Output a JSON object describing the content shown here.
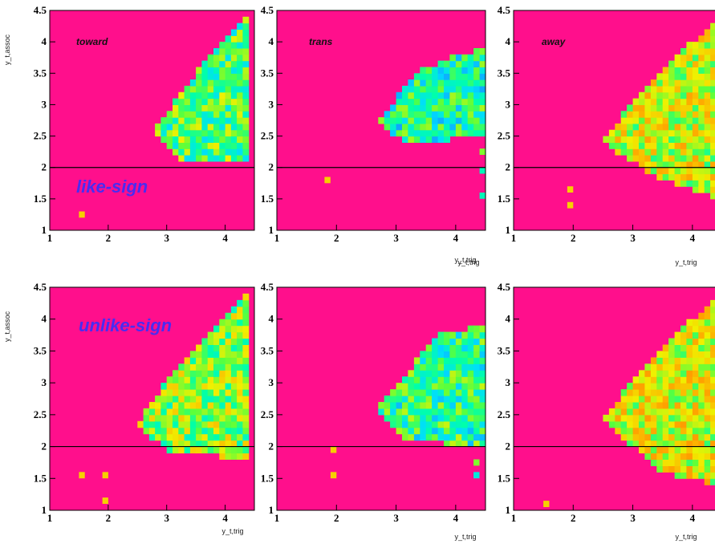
{
  "chart_data": [
    {
      "type": "heatmap",
      "panel_label": "toward",
      "sign_label": "like-sign",
      "xlabel": "y_t,trig",
      "ylabel": "y_t,assoc",
      "xlim": [
        1,
        4.5
      ],
      "ylim": [
        1,
        4.5
      ],
      "xticks": [
        "1",
        "2",
        "3",
        "4"
      ],
      "yticks": [
        "1",
        "1.5",
        "2",
        "2.5",
        "3",
        "3.5",
        "4",
        "4.5"
      ],
      "reference_line_y": 2,
      "background_color": "#ff0f8c",
      "cells": [
        [
          1.5,
          1.2,
          0.7
        ]
      ],
      "regions": [
        {
          "pts": [
            [
              2.8,
              2.6
            ],
            [
              3.5,
              3.5
            ],
            [
              4.0,
              4.1
            ],
            [
              4.4,
              4.4
            ],
            [
              4.4,
              2.1
            ],
            [
              3.2,
              2.1
            ]
          ],
          "level": 0.48
        }
      ]
    },
    {
      "type": "heatmap",
      "panel_label": "trans",
      "sign_label": "",
      "xlabel": "y_t,trig",
      "ylabel": "",
      "xlim": [
        1,
        4.5
      ],
      "ylim": [
        1,
        4.5
      ],
      "xticks": [
        "1",
        "2",
        "3",
        "4"
      ],
      "yticks": [
        "1",
        "1.5",
        "2",
        "2.5",
        "3",
        "3.5",
        "4",
        "4.5"
      ],
      "reference_line_y": 2,
      "background_color": "#ff0f8c",
      "cells": [
        [
          1.8,
          1.75,
          0.7
        ],
        [
          4.4,
          2.2,
          0.55
        ],
        [
          4.4,
          1.9,
          0.4
        ],
        [
          4.4,
          1.5,
          0.4
        ]
      ],
      "regions": [
        {
          "pts": [
            [
              2.7,
              2.7
            ],
            [
              3.3,
              3.5
            ],
            [
              4.0,
              3.8
            ],
            [
              4.5,
              3.9
            ],
            [
              4.5,
              2.5
            ],
            [
              3.2,
              2.4
            ]
          ],
          "level": 0.42
        }
      ]
    },
    {
      "type": "heatmap",
      "panel_label": "away",
      "sign_label": "",
      "xlabel": "y_t,trig",
      "ylabel": "",
      "xlim": [
        1,
        4.5
      ],
      "ylim": [
        1,
        4.5
      ],
      "xticks": [
        "1",
        "2",
        "3",
        "4"
      ],
      "yticks": [
        "1",
        "1.5",
        "2",
        "2.5",
        "3",
        "3.5",
        "4",
        "4.5"
      ],
      "reference_line_y": 2,
      "background_color": "#ff0f8c",
      "cells": [
        [
          1.9,
          1.6,
          0.7
        ],
        [
          1.9,
          1.35,
          0.7
        ]
      ],
      "regions": [
        {
          "pts": [
            [
              2.5,
              2.4
            ],
            [
              3.2,
              3.3
            ],
            [
              4.0,
              4.0
            ],
            [
              4.5,
              4.4
            ],
            [
              4.5,
              1.5
            ],
            [
              3.3,
              1.9
            ]
          ],
          "level": 0.62
        }
      ]
    },
    {
      "type": "heatmap",
      "panel_label": "",
      "sign_label": "unlike-sign",
      "xlabel": "y_t,trig",
      "ylabel": "y_t,assoc",
      "xlim": [
        1,
        4.5
      ],
      "ylim": [
        1,
        4.5
      ],
      "xticks": [
        "1",
        "2",
        "3",
        "4"
      ],
      "yticks": [
        "1",
        "1.5",
        "2",
        "2.5",
        "3",
        "3.5",
        "4",
        "4.5"
      ],
      "reference_line_y": 2,
      "background_color": "#ff0f8c",
      "cells": [
        [
          1.5,
          1.5,
          0.7
        ],
        [
          1.9,
          1.5,
          0.7
        ],
        [
          1.9,
          1.1,
          0.7
        ]
      ],
      "regions": [
        {
          "pts": [
            [
              2.5,
              2.35
            ],
            [
              3.1,
              3.2
            ],
            [
              3.9,
              3.9
            ],
            [
              4.4,
              4.4
            ],
            [
              4.4,
              1.8
            ],
            [
              3.0,
              1.95
            ]
          ],
          "level": 0.55
        }
      ]
    },
    {
      "type": "heatmap",
      "panel_label": "",
      "sign_label": "",
      "xlabel": "y_t,trig",
      "ylabel": "",
      "xlim": [
        1,
        4.5
      ],
      "ylim": [
        1,
        4.5
      ],
      "xticks": [
        "1",
        "2",
        "3",
        "4"
      ],
      "yticks": [
        "1",
        "1.5",
        "2",
        "2.5",
        "3",
        "3.5",
        "4",
        "4.5"
      ],
      "reference_line_y": 2,
      "background_color": "#ff0f8c",
      "cells": [
        [
          1.9,
          1.9,
          0.7
        ],
        [
          1.9,
          1.5,
          0.7
        ],
        [
          4.3,
          1.7,
          0.55
        ],
        [
          4.3,
          1.5,
          0.35
        ]
      ],
      "regions": [
        {
          "pts": [
            [
              2.7,
              2.6
            ],
            [
              3.3,
              3.3
            ],
            [
              3.8,
              3.8
            ],
            [
              4.5,
              3.9
            ],
            [
              4.5,
              2.0
            ],
            [
              3.2,
              2.1
            ]
          ],
          "level": 0.44
        }
      ]
    },
    {
      "type": "heatmap",
      "panel_label": "",
      "sign_label": "",
      "xlabel": "y_t,trig",
      "ylabel": "",
      "xlim": [
        1,
        4.5
      ],
      "ylim": [
        1,
        4.5
      ],
      "xticks": [
        "1",
        "2",
        "3",
        "4"
      ],
      "yticks": [
        "1",
        "1.5",
        "2",
        "2.5",
        "3",
        "3.5",
        "4",
        "4.5"
      ],
      "reference_line_y": 2,
      "background_color": "#ff0f8c",
      "cells": [
        [
          1.5,
          1.05,
          0.7
        ]
      ],
      "regions": [
        {
          "pts": [
            [
              2.5,
              2.4
            ],
            [
              3.1,
              3.2
            ],
            [
              4.0,
              4.0
            ],
            [
              4.5,
              4.4
            ],
            [
              4.5,
              1.4
            ],
            [
              3.5,
              1.6
            ]
          ],
          "level": 0.64
        }
      ]
    }
  ]
}
